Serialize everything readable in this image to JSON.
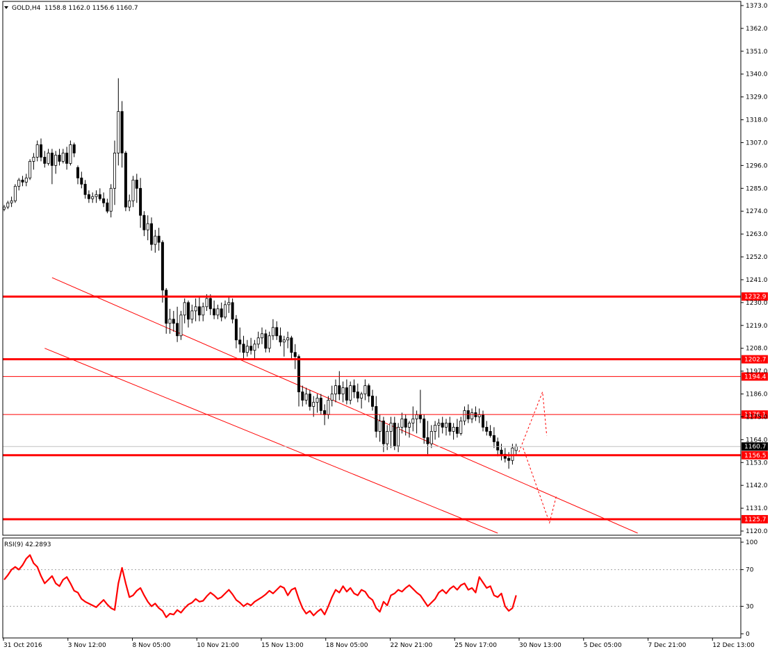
{
  "header": {
    "title": "GOLD,H4",
    "ohlc": "1158.8 1162.0 1156.6 1160.7"
  },
  "rsi": {
    "title": "RSI(9) 42.2893",
    "levels": [
      {
        "label": "100",
        "value": 100
      },
      {
        "label": "70",
        "value": 70
      },
      {
        "label": "30",
        "value": 30
      },
      {
        "label": "0",
        "value": 0
      }
    ]
  },
  "price_ticks": [
    "1373.0",
    "1362.0",
    "1351.0",
    "1340.0",
    "1329.0",
    "1318.0",
    "1307.0",
    "1296.0",
    "1285.0",
    "1274.0",
    "1263.0",
    "1252.0",
    "1241.0",
    "1230.0",
    "1219.0",
    "1208.0",
    "1197.0",
    "1186.0",
    "1175.0",
    "1164.0",
    "1153.0",
    "1142.0",
    "1131.0",
    "1120.0"
  ],
  "time_labels": [
    "31 Oct 2016",
    "3 Nov 12:00",
    "8 Nov 05:00",
    "10 Nov 21:00",
    "15 Nov 13:00",
    "18 Nov 05:00",
    "22 Nov 21:00",
    "25 Nov 17:00",
    "30 Nov 13:00",
    "5 Dec 05:00",
    "7 Dec 21:00",
    "12 Dec 13:00"
  ],
  "levels": [
    {
      "label": "1232.9",
      "value": 1232.9,
      "thick": true
    },
    {
      "label": "1202.7",
      "value": 1202.7,
      "thick": true
    },
    {
      "label": "1194.4",
      "value": 1194.4,
      "thick": false
    },
    {
      "label": "1176.1",
      "value": 1176.1,
      "thick": false
    },
    {
      "label": "1160.7",
      "value": 1160.7,
      "current": true
    },
    {
      "label": "1156.5",
      "value": 1156.5,
      "thick": true
    },
    {
      "label": "1125.7",
      "value": 1125.7,
      "thick": true
    }
  ],
  "colors": {
    "level": "#ff0000",
    "candle": "#000000",
    "rsi": "#ff0000",
    "grid": "#c0c0c0"
  },
  "chart_data": {
    "type": "candlestick",
    "symbol": "GOLD",
    "timeframe": "H4",
    "ylim": [
      1118,
      1375
    ],
    "candles": [
      [
        1275,
        1277,
        1274,
        1276
      ],
      [
        1276,
        1279,
        1275,
        1278
      ],
      [
        1278,
        1281,
        1276,
        1279
      ],
      [
        1279,
        1287,
        1278,
        1286
      ],
      [
        1286,
        1290,
        1284,
        1289
      ],
      [
        1289,
        1291,
        1286,
        1288
      ],
      [
        1288,
        1292,
        1286,
        1290
      ],
      [
        1290,
        1299,
        1289,
        1298
      ],
      [
        1298,
        1302,
        1294,
        1300
      ],
      [
        1300,
        1308,
        1298,
        1306
      ],
      [
        1306,
        1309,
        1298,
        1300
      ],
      [
        1300,
        1303,
        1295,
        1297
      ],
      [
        1297,
        1304,
        1296,
        1302
      ],
      [
        1302,
        1304,
        1287,
        1296
      ],
      [
        1296,
        1303,
        1292,
        1301
      ],
      [
        1301,
        1304,
        1296,
        1298
      ],
      [
        1298,
        1304,
        1297,
        1302
      ],
      [
        1302,
        1305,
        1294,
        1297
      ],
      [
        1297,
        1308,
        1296,
        1306
      ],
      [
        1306,
        1307,
        1300,
        1302
      ],
      [
        1295,
        1296,
        1287,
        1290
      ],
      [
        1290,
        1293,
        1285,
        1287
      ],
      [
        1287,
        1289,
        1280,
        1282
      ],
      [
        1282,
        1284,
        1278,
        1280
      ],
      [
        1280,
        1283,
        1278,
        1281
      ],
      [
        1281,
        1284,
        1278,
        1282
      ],
      [
        1282,
        1285,
        1279,
        1280
      ],
      [
        1280,
        1283,
        1276,
        1278
      ],
      [
        1278,
        1280,
        1273,
        1274
      ],
      [
        1274,
        1287,
        1271,
        1285
      ],
      [
        1285,
        1308,
        1277,
        1302
      ],
      [
        1302,
        1338,
        1296,
        1322
      ],
      [
        1322,
        1327,
        1295,
        1302
      ],
      [
        1302,
        1303,
        1274,
        1276
      ],
      [
        1276,
        1282,
        1274,
        1279
      ],
      [
        1279,
        1291,
        1276,
        1289
      ],
      [
        1289,
        1292,
        1278,
        1285
      ],
      [
        1285,
        1290,
        1266,
        1272
      ],
      [
        1272,
        1274,
        1262,
        1265
      ],
      [
        1265,
        1272,
        1260,
        1268
      ],
      [
        1268,
        1271,
        1255,
        1258
      ],
      [
        1258,
        1265,
        1254,
        1262
      ],
      [
        1262,
        1266,
        1255,
        1259
      ],
      [
        1259,
        1260,
        1230,
        1236
      ],
      [
        1236,
        1237,
        1215,
        1220
      ],
      [
        1220,
        1227,
        1215,
        1222
      ],
      [
        1222,
        1226,
        1216,
        1220
      ],
      [
        1220,
        1228,
        1211,
        1214
      ],
      [
        1214,
        1226,
        1212,
        1224
      ],
      [
        1224,
        1232,
        1220,
        1230
      ],
      [
        1230,
        1231,
        1218,
        1222
      ],
      [
        1222,
        1229,
        1220,
        1226
      ],
      [
        1226,
        1232,
        1221,
        1228
      ],
      [
        1228,
        1233,
        1221,
        1224
      ],
      [
        1224,
        1230,
        1221,
        1228
      ],
      [
        1228,
        1234,
        1226,
        1232
      ],
      [
        1232,
        1234,
        1224,
        1227
      ],
      [
        1227,
        1231,
        1222,
        1224
      ],
      [
        1224,
        1229,
        1222,
        1227
      ],
      [
        1227,
        1230,
        1221,
        1223
      ],
      [
        1223,
        1231,
        1222,
        1229
      ],
      [
        1229,
        1233,
        1225,
        1230
      ],
      [
        1230,
        1232,
        1220,
        1222
      ],
      [
        1222,
        1224,
        1208,
        1212
      ],
      [
        1212,
        1218,
        1206,
        1210
      ],
      [
        1210,
        1214,
        1203,
        1206
      ],
      [
        1206,
        1212,
        1204,
        1209
      ],
      [
        1209,
        1213,
        1205,
        1207
      ],
      [
        1207,
        1212,
        1203,
        1210
      ],
      [
        1210,
        1216,
        1208,
        1213
      ],
      [
        1213,
        1218,
        1210,
        1215
      ],
      [
        1215,
        1217,
        1206,
        1208
      ],
      [
        1208,
        1216,
        1206,
        1214
      ],
      [
        1214,
        1222,
        1212,
        1218
      ],
      [
        1218,
        1221,
        1212,
        1214
      ],
      [
        1214,
        1218,
        1209,
        1211
      ],
      [
        1211,
        1214,
        1204,
        1212
      ],
      [
        1212,
        1216,
        1208,
        1213
      ],
      [
        1213,
        1214,
        1203,
        1206
      ],
      [
        1206,
        1210,
        1198,
        1204
      ],
      [
        1204,
        1205,
        1180,
        1187
      ],
      [
        1187,
        1190,
        1180,
        1183
      ],
      [
        1183,
        1189,
        1181,
        1186
      ],
      [
        1186,
        1188,
        1178,
        1180
      ],
      [
        1180,
        1185,
        1175,
        1182
      ],
      [
        1182,
        1186,
        1177,
        1184
      ],
      [
        1184,
        1186,
        1176,
        1178
      ],
      [
        1178,
        1181,
        1171,
        1176
      ],
      [
        1176,
        1185,
        1174,
        1183
      ],
      [
        1183,
        1190,
        1180,
        1186
      ],
      [
        1186,
        1193,
        1182,
        1190
      ],
      [
        1190,
        1197,
        1183,
        1186
      ],
      [
        1186,
        1192,
        1182,
        1189
      ],
      [
        1189,
        1193,
        1181,
        1183
      ],
      [
        1183,
        1192,
        1181,
        1190
      ],
      [
        1190,
        1193,
        1184,
        1187
      ],
      [
        1187,
        1191,
        1182,
        1184
      ],
      [
        1184,
        1187,
        1179,
        1186
      ],
      [
        1186,
        1193,
        1183,
        1190
      ],
      [
        1190,
        1191,
        1182,
        1185
      ],
      [
        1185,
        1188,
        1178,
        1180
      ],
      [
        1180,
        1185,
        1165,
        1168
      ],
      [
        1168,
        1176,
        1163,
        1173
      ],
      [
        1173,
        1175,
        1158,
        1162
      ],
      [
        1162,
        1171,
        1159,
        1168
      ],
      [
        1168,
        1175,
        1160,
        1172
      ],
      [
        1172,
        1175,
        1159,
        1161
      ],
      [
        1161,
        1172,
        1158,
        1170
      ],
      [
        1170,
        1177,
        1167,
        1174
      ],
      [
        1174,
        1176,
        1166,
        1170
      ],
      [
        1170,
        1173,
        1165,
        1172
      ],
      [
        1172,
        1180,
        1168,
        1174
      ],
      [
        1174,
        1178,
        1167,
        1176
      ],
      [
        1176,
        1188,
        1172,
        1174
      ],
      [
        1174,
        1176,
        1162,
        1165
      ],
      [
        1165,
        1173,
        1157,
        1162
      ],
      [
        1162,
        1171,
        1160,
        1168
      ],
      [
        1168,
        1173,
        1164,
        1171
      ],
      [
        1171,
        1174,
        1165,
        1172
      ],
      [
        1172,
        1175,
        1167,
        1170
      ],
      [
        1170,
        1174,
        1166,
        1172
      ],
      [
        1172,
        1175,
        1166,
        1168
      ],
      [
        1168,
        1172,
        1164,
        1170
      ],
      [
        1170,
        1174,
        1165,
        1167
      ],
      [
        1167,
        1175,
        1166,
        1173
      ],
      [
        1173,
        1180,
        1171,
        1178
      ],
      [
        1178,
        1181,
        1172,
        1174
      ],
      [
        1174,
        1179,
        1172,
        1177
      ],
      [
        1177,
        1180,
        1173,
        1175
      ],
      [
        1175,
        1179,
        1172,
        1176
      ],
      [
        1176,
        1178,
        1168,
        1170
      ],
      [
        1170,
        1173,
        1166,
        1168
      ],
      [
        1168,
        1171,
        1165,
        1166
      ],
      [
        1166,
        1170,
        1160,
        1163
      ],
      [
        1163,
        1165,
        1156,
        1159
      ],
      [
        1159,
        1162,
        1154,
        1157
      ],
      [
        1157,
        1160,
        1153,
        1155
      ],
      [
        1155,
        1158,
        1150,
        1154
      ],
      [
        1154,
        1162,
        1152,
        1160
      ],
      [
        1158.8,
        1162,
        1156.6,
        1160.7
      ]
    ],
    "trend_channel": {
      "upper": [
        [
          13,
          1242
        ],
        [
          172,
          1119
        ]
      ],
      "lower": [
        [
          11,
          1208
        ],
        [
          134,
          1119
        ]
      ]
    },
    "projection": [
      [
        1161,
        1187
      ],
      [
        1155,
        1124
      ],
      [
        1130,
        1137
      ]
    ],
    "horizontal_levels": [
      1232.9,
      1202.7,
      1194.4,
      1176.1,
      1156.5,
      1125.7
    ],
    "current_price": 1160.7,
    "rsi": {
      "period": 9,
      "value": 42.2893,
      "ylim": [
        0,
        100
      ],
      "levels": [
        30,
        70
      ],
      "values": [
        59,
        64,
        70,
        73,
        70,
        75,
        82,
        86,
        77,
        73,
        63,
        55,
        59,
        63,
        55,
        52,
        59,
        62,
        55,
        47,
        45,
        38,
        35,
        31,
        29,
        33,
        37,
        32,
        28,
        26,
        55,
        72,
        55,
        40,
        42,
        47,
        50,
        42,
        35,
        30,
        33,
        28,
        25,
        18,
        22,
        21,
        26,
        23,
        28,
        32,
        34,
        38,
        35,
        36,
        41,
        45,
        42,
        38,
        40,
        44,
        48,
        43,
        37,
        34,
        30,
        33,
        31,
        35,
        40,
        43,
        47,
        44,
        48,
        52,
        50,
        42,
        48,
        50,
        38,
        28,
        22,
        25,
        20,
        24,
        27,
        21,
        30,
        40,
        48,
        45,
        52,
        46,
        50,
        44,
        42,
        48,
        46,
        40,
        37,
        28,
        24,
        35,
        31,
        42,
        44,
        48,
        46,
        50,
        53,
        49,
        45,
        42,
        36,
        30,
        38,
        45,
        48,
        44,
        49,
        52,
        48,
        53,
        55,
        48,
        50,
        45,
        62,
        56,
        50,
        52,
        42,
        40,
        44,
        30,
        25,
        28,
        42
      ]
    }
  }
}
